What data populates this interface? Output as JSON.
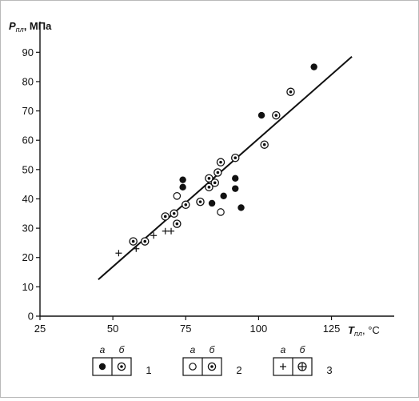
{
  "chart_data": {
    "type": "scatter",
    "title": "",
    "ylabel": {
      "main": "P",
      "sub": "пл",
      "unit": ", МПа"
    },
    "xlabel": {
      "main": "T",
      "sub": "пл",
      "unit": ", °C"
    },
    "xlim": [
      25,
      135
    ],
    "ylim": [
      0,
      95
    ],
    "x_ticks": [
      "25",
      "50",
      "75",
      "100",
      "125"
    ],
    "y_ticks": [
      "0",
      "10",
      "20",
      "30",
      "40",
      "50",
      "60",
      "70",
      "80",
      "90"
    ],
    "trend_line": {
      "x": [
        45,
        132
      ],
      "y": [
        12.5,
        88.5
      ]
    },
    "series": [
      {
        "group": "1",
        "variant": "а",
        "marker": "filled",
        "x": [
          74,
          74,
          84,
          88,
          92,
          92,
          94,
          101,
          119
        ],
        "y": [
          46.5,
          44,
          38.5,
          41,
          43.5,
          47,
          37,
          68.5,
          85
        ]
      },
      {
        "group": "1",
        "variant": "б",
        "marker": "dotted-circle",
        "x": [
          57,
          61,
          68,
          71,
          72,
          75,
          80,
          83,
          83,
          85,
          86,
          87,
          92,
          102,
          106,
          111
        ],
        "y": [
          25.5,
          25.5,
          34,
          35,
          31.5,
          38,
          39,
          44,
          47,
          45.5,
          49,
          52.5,
          54,
          58.5,
          68.5,
          76.5
        ]
      },
      {
        "group": "2",
        "variant": "а",
        "marker": "open-circle",
        "x": [
          72,
          87
        ],
        "y": [
          41,
          35.5
        ]
      },
      {
        "group": "3",
        "variant": "а",
        "marker": "plus",
        "x": [
          52,
          58,
          64,
          68,
          70
        ],
        "y": [
          21.5,
          23,
          27.5,
          29,
          29
        ]
      }
    ],
    "legend": [
      {
        "number": "1",
        "a_label": "а",
        "b_label": "б"
      },
      {
        "number": "2",
        "a_label": "а",
        "b_label": "б"
      },
      {
        "number": "3",
        "a_label": "а",
        "b_label": "б"
      }
    ]
  }
}
